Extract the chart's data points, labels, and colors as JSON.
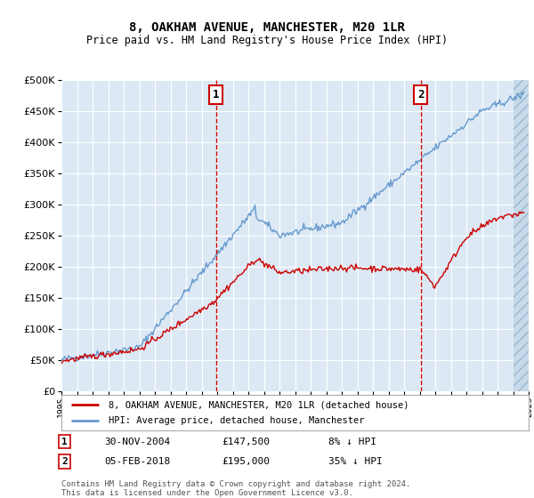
{
  "title": "8, OAKHAM AVENUE, MANCHESTER, M20 1LR",
  "subtitle": "Price paid vs. HM Land Registry's House Price Index (HPI)",
  "background_color": "#dce9f5",
  "ylim": [
    0,
    500000
  ],
  "yticks": [
    0,
    50000,
    100000,
    150000,
    200000,
    250000,
    300000,
    350000,
    400000,
    450000,
    500000
  ],
  "line_red_color": "#cc0000",
  "line_blue_color": "#6699cc",
  "dashed_color": "#cc0000",
  "marker1_x": 2004.92,
  "marker2_x": 2018.08,
  "marker1_label": "1",
  "marker2_label": "2",
  "legend_red_label": "8, OAKHAM AVENUE, MANCHESTER, M20 1LR (detached house)",
  "legend_blue_label": "HPI: Average price, detached house, Manchester",
  "footnote": "Contains HM Land Registry data © Crown copyright and database right 2024.\nThis data is licensed under the Open Government Licence v3.0.",
  "xstart": 1995,
  "xend": 2025
}
